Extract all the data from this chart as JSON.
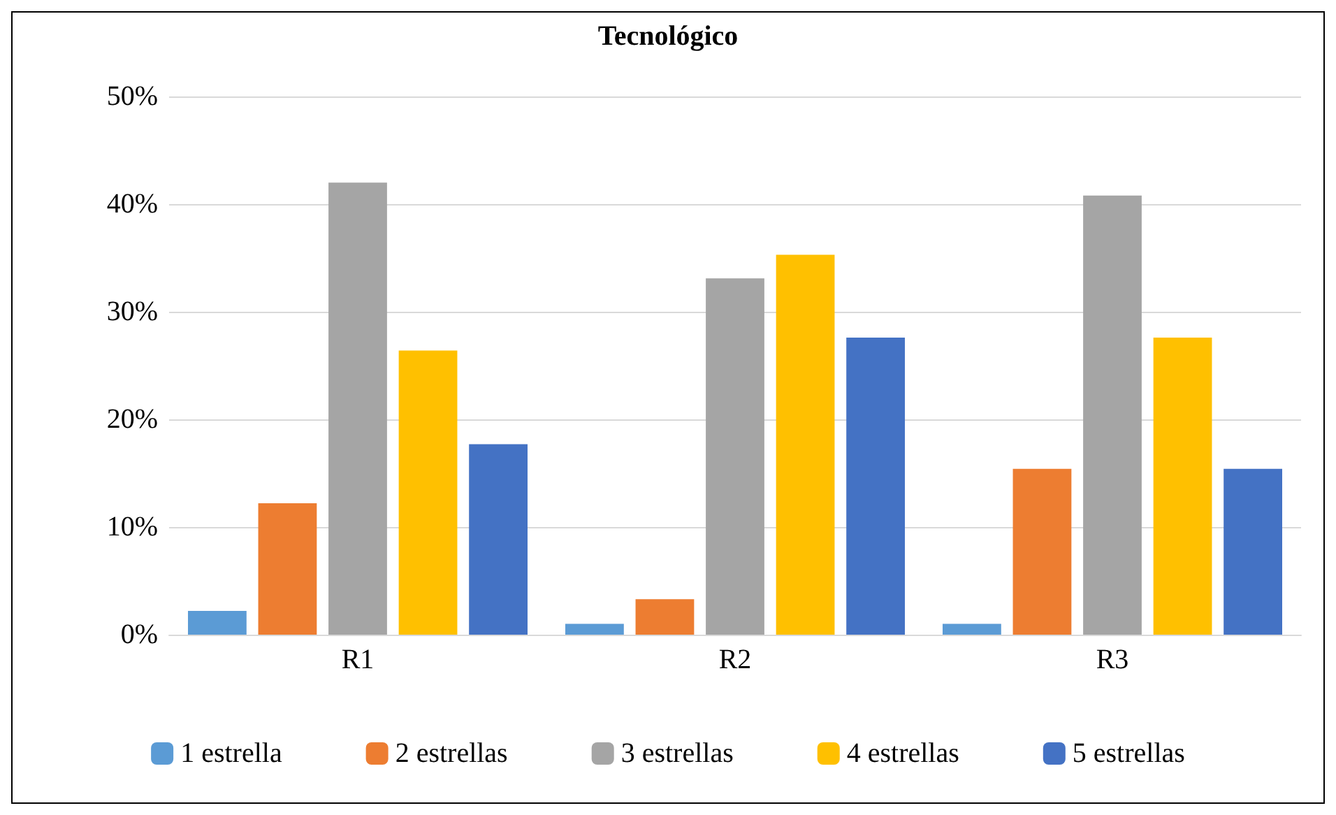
{
  "chart_data": {
    "type": "bar",
    "title": "Tecnológico",
    "categories": [
      "R1",
      "R2",
      "R3"
    ],
    "series": [
      {
        "name": "1 estrella",
        "color": "#5b9bd5",
        "values": [
          2.2,
          1,
          1
        ]
      },
      {
        "name": "2 estrellas",
        "color": "#ed7d31",
        "values": [
          12.2,
          3.3,
          15.4
        ]
      },
      {
        "name": "3 estrellas",
        "color": "#a5a5a5",
        "values": [
          42,
          33.1,
          40.8
        ]
      },
      {
        "name": "4 estrellas",
        "color": "#ffc000",
        "values": [
          26.4,
          35.3,
          27.6
        ]
      },
      {
        "name": "5 estrellas",
        "color": "#4472c4",
        "values": [
          17.7,
          27.6,
          15.4
        ]
      }
    ],
    "ylim": [
      0,
      50
    ],
    "yticks": [
      {
        "value": 0,
        "label": "0%"
      },
      {
        "value": 10,
        "label": "10%"
      },
      {
        "value": 20,
        "label": "20%"
      },
      {
        "value": 30,
        "label": "30%"
      },
      {
        "value": 40,
        "label": "40%"
      },
      {
        "value": 50,
        "label": "50%"
      }
    ],
    "grid": "y",
    "legend": "bottom"
  }
}
